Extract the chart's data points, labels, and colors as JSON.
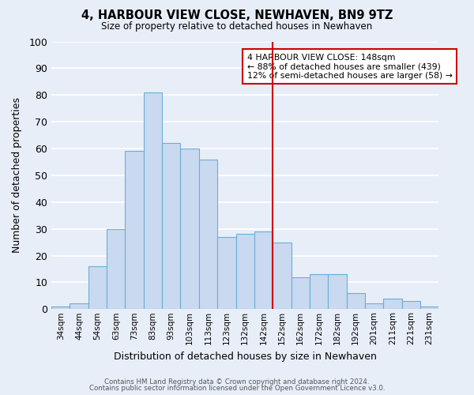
{
  "title": "4, HARBOUR VIEW CLOSE, NEWHAVEN, BN9 9TZ",
  "subtitle": "Size of property relative to detached houses in Newhaven",
  "xlabel": "Distribution of detached houses by size in Newhaven",
  "ylabel": "Number of detached properties",
  "categories": [
    "34sqm",
    "44sqm",
    "54sqm",
    "63sqm",
    "73sqm",
    "83sqm",
    "93sqm",
    "103sqm",
    "113sqm",
    "123sqm",
    "132sqm",
    "142sqm",
    "152sqm",
    "162sqm",
    "172sqm",
    "182sqm",
    "192sqm",
    "201sqm",
    "211sqm",
    "221sqm",
    "231sqm"
  ],
  "values": [
    1,
    2,
    16,
    30,
    59,
    81,
    62,
    60,
    56,
    27,
    28,
    29,
    25,
    12,
    13,
    13,
    6,
    2,
    4,
    3,
    1
  ],
  "bar_color": "#c9d9f0",
  "bar_edge_color": "#6aaed6",
  "bg_color": "#e8eef8",
  "grid_color": "#ffffff",
  "vline_color": "#cc0000",
  "ylim": [
    0,
    100
  ],
  "yticks": [
    0,
    10,
    20,
    30,
    40,
    50,
    60,
    70,
    80,
    90,
    100
  ],
  "annotation_title": "4 HARBOUR VIEW CLOSE: 148sqm",
  "annotation_line1": "← 88% of detached houses are smaller (439)",
  "annotation_line2": "12% of semi-detached houses are larger (58) →",
  "annotation_box_color": "#ffffff",
  "annotation_box_edge": "#cc0000",
  "footer1": "Contains HM Land Registry data © Crown copyright and database right 2024.",
  "footer2": "Contains public sector information licensed under the Open Government Licence v3.0."
}
